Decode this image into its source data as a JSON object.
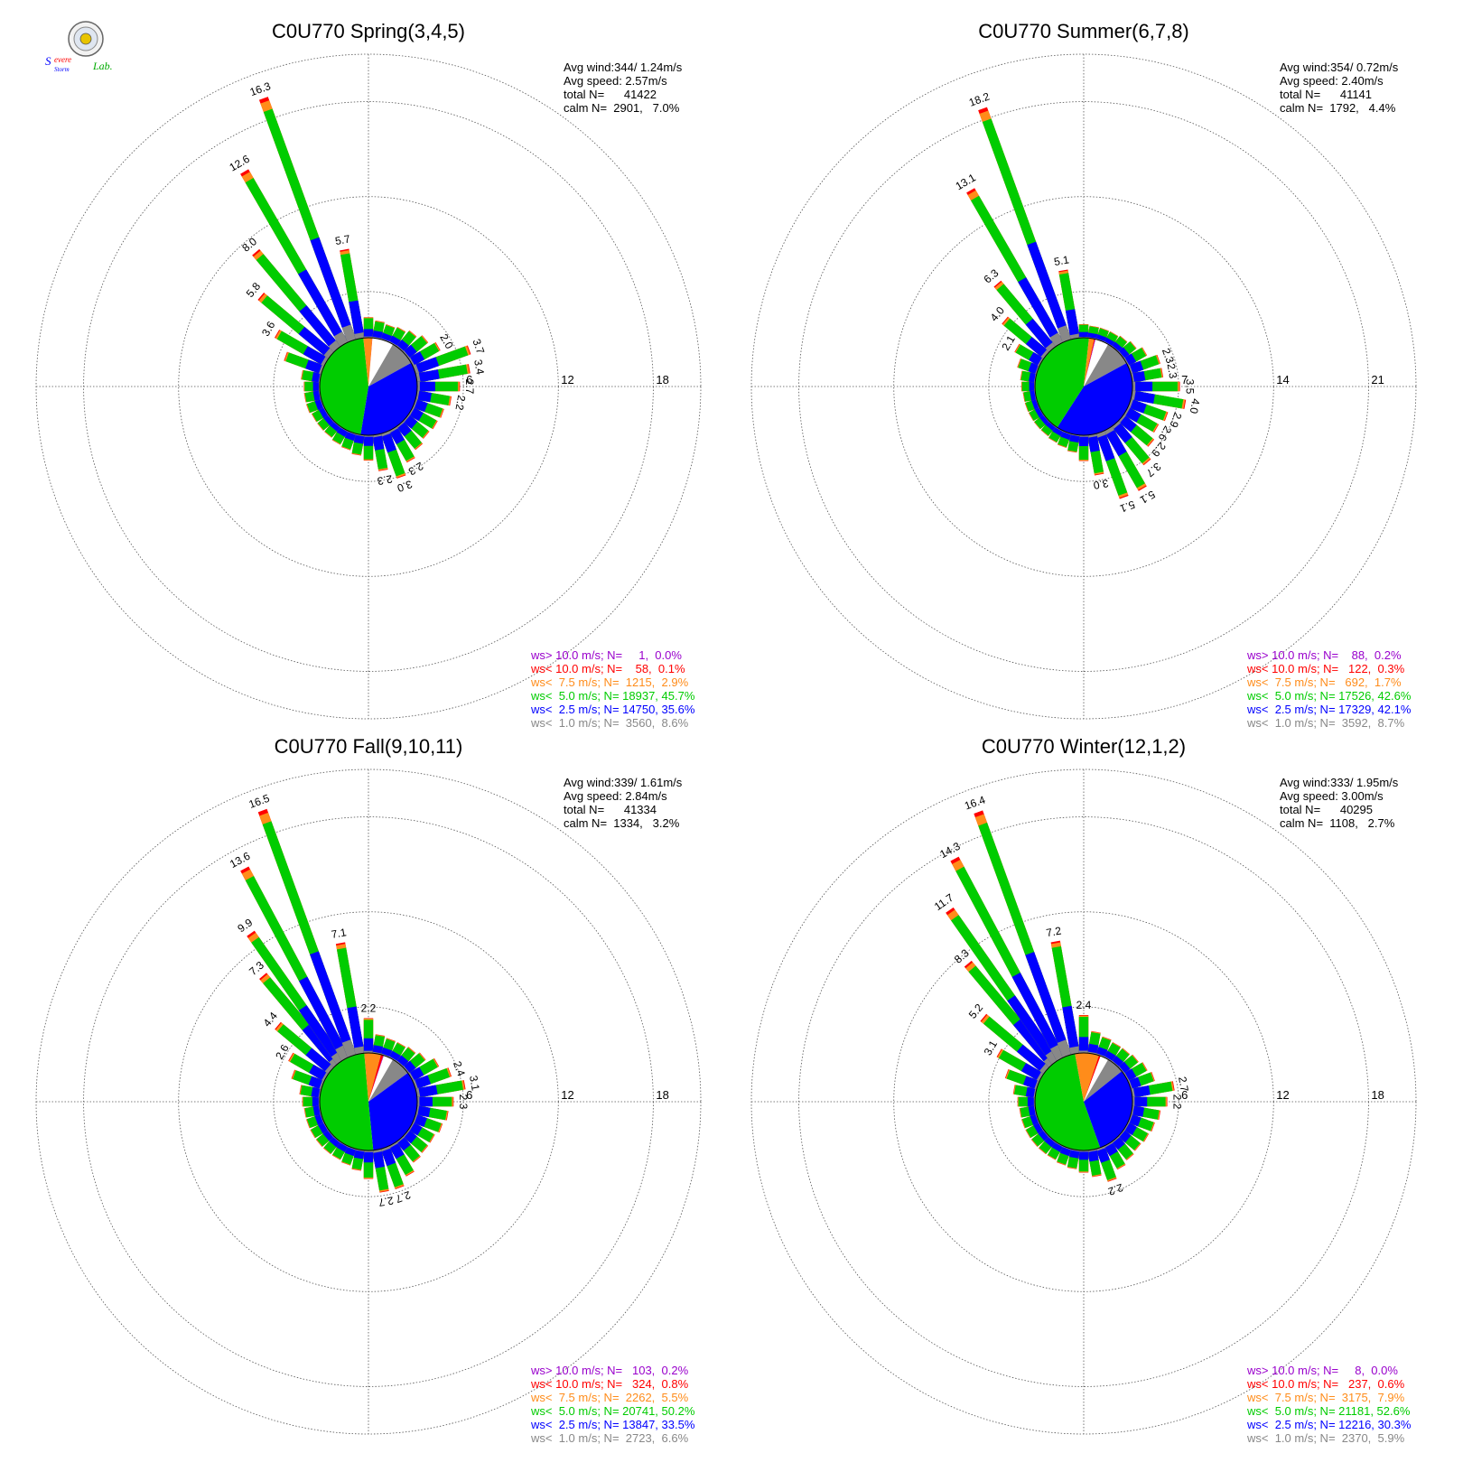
{
  "logo": {
    "text_a": "Severe",
    "text_b": "Storm",
    "text_c": "Lab."
  },
  "colors": {
    "gt10": "#9900cc",
    "lt10": "#ff0000",
    "lt7_5": "#ff8c1a",
    "lt5": "#00cc00",
    "lt2_5": "#0000ff",
    "lt1": "#888888",
    "calm": "#ffffff",
    "grid": "#555555",
    "text": "#000000"
  },
  "legend_classes": [
    "gt10",
    "lt10",
    "lt7_5",
    "lt5",
    "lt2_5",
    "lt1"
  ],
  "chart_data": [
    {
      "type": "wind-rose",
      "title": "C0U770 Spring(3,4,5)",
      "rings": [
        6,
        12,
        18
      ],
      "rmax": 21,
      "stats": [
        "Avg wind:344/ 1.24m/s",
        "Avg speed: 2.57m/s",
        "total N=      41422",
        "calm N=  2901,   7.0%"
      ],
      "legend": [
        "ws> 10.0 m/s; N=     1,  0.0%",
        "ws< 10.0 m/s; N=    58,  0.1%",
        "ws<  7.5 m/s; N=  1215,  2.9%",
        "ws<  5.0 m/s; N= 18937, 45.7%",
        "ws<  2.5 m/s; N= 14750, 35.6%",
        "ws<  1.0 m/s; N=  3560,  8.6%"
      ],
      "pie": [
        8.6,
        35.6,
        45.7,
        2.9,
        0.1,
        0.0,
        7.0
      ],
      "petals": [
        {
          "dir": 270,
          "total": 1.0
        },
        {
          "dir": 280,
          "total": 1.2
        },
        {
          "dir": 290,
          "total": 2.5
        },
        {
          "dir": 300,
          "total": 3.6,
          "label": "3.6"
        },
        {
          "dir": 310,
          "total": 5.8,
          "label": "5.8"
        },
        {
          "dir": 320,
          "total": 8.0,
          "label": "8.0"
        },
        {
          "dir": 330,
          "total": 12.6,
          "label": "12.6"
        },
        {
          "dir": 340,
          "total": 16.3,
          "label": "16.3"
        },
        {
          "dir": 350,
          "total": 5.7,
          "label": "5.7"
        },
        {
          "dir": 0,
          "total": 1.3
        },
        {
          "dir": 10,
          "total": 1.1
        },
        {
          "dir": 20,
          "total": 1.0
        },
        {
          "dir": 30,
          "total": 1.1
        },
        {
          "dir": 40,
          "total": 1.3
        },
        {
          "dir": 50,
          "total": 1.6
        },
        {
          "dir": 60,
          "total": 2.0,
          "label": "2.0"
        },
        {
          "dir": 70,
          "total": 3.7,
          "label": "3.7"
        },
        {
          "dir": 80,
          "total": 3.4,
          "label": "3.4"
        },
        {
          "dir": 90,
          "total": 2.7,
          "label": "2.7"
        },
        {
          "dir": 100,
          "total": 2.2,
          "label": "2.2"
        },
        {
          "dir": 110,
          "total": 1.9
        },
        {
          "dir": 120,
          "total": 1.8
        },
        {
          "dir": 130,
          "total": 1.7
        },
        {
          "dir": 140,
          "total": 1.9
        },
        {
          "dir": 150,
          "total": 2.3,
          "label": "2.3"
        },
        {
          "dir": 160,
          "total": 3.0,
          "label": "3.0"
        },
        {
          "dir": 170,
          "total": 2.3,
          "label": "2.3"
        },
        {
          "dir": 180,
          "total": 1.6
        },
        {
          "dir": 190,
          "total": 1.3
        },
        {
          "dir": 200,
          "total": 1.1
        },
        {
          "dir": 210,
          "total": 1.0
        },
        {
          "dir": 220,
          "total": 0.9
        },
        {
          "dir": 230,
          "total": 0.9
        },
        {
          "dir": 240,
          "total": 0.9
        },
        {
          "dir": 250,
          "total": 1.0
        },
        {
          "dir": 260,
          "total": 1.0
        }
      ]
    },
    {
      "type": "wind-rose",
      "title": "C0U770 Summer(6,7,8)",
      "rings": [
        7,
        14,
        21
      ],
      "rmax": 24.5,
      "stats": [
        "Avg wind:354/ 0.72m/s",
        "Avg speed: 2.40m/s",
        "total N=      41141",
        "calm N=  1792,   4.4%"
      ],
      "legend": [
        "ws> 10.0 m/s; N=    88,  0.2%",
        "ws< 10.0 m/s; N=   122,  0.3%",
        "ws<  7.5 m/s; N=   692,  1.7%",
        "ws<  5.0 m/s; N= 17526, 42.6%",
        "ws<  2.5 m/s; N= 17329, 42.1%",
        "ws<  1.0 m/s; N=  3592,  8.7%"
      ],
      "pie": [
        8.7,
        42.1,
        42.6,
        1.7,
        0.3,
        0.2,
        4.4
      ],
      "petals": [
        {
          "dir": 270,
          "total": 1.0
        },
        {
          "dir": 280,
          "total": 1.1
        },
        {
          "dir": 290,
          "total": 1.5
        },
        {
          "dir": 300,
          "total": 2.1,
          "label": "2.1"
        },
        {
          "dir": 310,
          "total": 4.0,
          "label": "4.0"
        },
        {
          "dir": 320,
          "total": 6.3,
          "label": "6.3"
        },
        {
          "dir": 330,
          "total": 13.1,
          "label": "13.1"
        },
        {
          "dir": 340,
          "total": 18.2,
          "label": "18.2"
        },
        {
          "dir": 350,
          "total": 5.1,
          "label": "5.1"
        },
        {
          "dir": 0,
          "total": 1.0
        },
        {
          "dir": 10,
          "total": 0.9
        },
        {
          "dir": 20,
          "total": 0.9
        },
        {
          "dir": 30,
          "total": 0.9
        },
        {
          "dir": 40,
          "total": 1.0
        },
        {
          "dir": 50,
          "total": 1.2
        },
        {
          "dir": 60,
          "total": 1.6
        },
        {
          "dir": 70,
          "total": 2.3,
          "label": "2.3"
        },
        {
          "dir": 80,
          "total": 2.3,
          "label": "2.3"
        },
        {
          "dir": 90,
          "total": 3.5,
          "label": "3.5"
        },
        {
          "dir": 100,
          "total": 4.0,
          "label": "4.0"
        },
        {
          "dir": 110,
          "total": 2.9,
          "label": "2.9"
        },
        {
          "dir": 120,
          "total": 2.6,
          "label": "2.6"
        },
        {
          "dir": 130,
          "total": 2.9,
          "label": "2.9"
        },
        {
          "dir": 140,
          "total": 3.7,
          "label": "3.7"
        },
        {
          "dir": 150,
          "total": 5.1,
          "label": "5.1"
        },
        {
          "dir": 160,
          "total": 5.1,
          "label": "5.1"
        },
        {
          "dir": 170,
          "total": 3.0,
          "label": "3.0"
        },
        {
          "dir": 180,
          "total": 1.9
        },
        {
          "dir": 190,
          "total": 1.3
        },
        {
          "dir": 200,
          "total": 1.1
        },
        {
          "dir": 210,
          "total": 1.0
        },
        {
          "dir": 220,
          "total": 0.9
        },
        {
          "dir": 230,
          "total": 0.9
        },
        {
          "dir": 240,
          "total": 0.9
        },
        {
          "dir": 250,
          "total": 0.9
        },
        {
          "dir": 260,
          "total": 0.9
        }
      ]
    },
    {
      "type": "wind-rose",
      "title": "C0U770 Fall(9,10,11)",
      "rings": [
        6,
        12,
        18
      ],
      "rmax": 21,
      "stats": [
        "Avg wind:339/ 1.61m/s",
        "Avg speed: 2.84m/s",
        "total N=      41334",
        "calm N=  1334,   3.2%"
      ],
      "legend": [
        "ws> 10.0 m/s; N=   103,  0.2%",
        "ws< 10.0 m/s; N=   324,  0.8%",
        "ws<  7.5 m/s; N=  2262,  5.5%",
        "ws<  5.0 m/s; N= 20741, 50.2%",
        "ws<  2.5 m/s; N= 13847, 33.5%",
        "ws<  1.0 m/s; N=  2723,  6.6%"
      ],
      "pie": [
        6.6,
        33.5,
        50.2,
        5.5,
        0.8,
        0.2,
        3.2
      ],
      "petals": [
        {
          "dir": 270,
          "total": 1.1
        },
        {
          "dir": 280,
          "total": 1.3
        },
        {
          "dir": 290,
          "total": 2.0
        },
        {
          "dir": 300,
          "total": 2.6,
          "label": "2.6"
        },
        {
          "dir": 310,
          "total": 4.4,
          "label": "4.4"
        },
        {
          "dir": 320,
          "total": 7.3,
          "label": "7.3"
        },
        {
          "dir": 325,
          "total": 9.9,
          "label": "9.9"
        },
        {
          "dir": 332,
          "total": 13.6,
          "label": "13.6"
        },
        {
          "dir": 340,
          "total": 16.5,
          "label": "16.5"
        },
        {
          "dir": 350,
          "total": 7.1,
          "label": "7.1"
        },
        {
          "dir": 0,
          "total": 2.2,
          "label": "2.2"
        },
        {
          "dir": 10,
          "total": 1.2
        },
        {
          "dir": 20,
          "total": 1.1
        },
        {
          "dir": 30,
          "total": 1.1
        },
        {
          "dir": 40,
          "total": 1.2
        },
        {
          "dir": 50,
          "total": 1.4
        },
        {
          "dir": 60,
          "total": 1.9
        },
        {
          "dir": 70,
          "total": 2.4,
          "label": "2.4"
        },
        {
          "dir": 80,
          "total": 3.1,
          "label": "3.1"
        },
        {
          "dir": 90,
          "total": 2.3,
          "label": "2.3"
        },
        {
          "dir": 100,
          "total": 2.0
        },
        {
          "dir": 110,
          "total": 1.8
        },
        {
          "dir": 120,
          "total": 1.6
        },
        {
          "dir": 130,
          "total": 1.6
        },
        {
          "dir": 140,
          "total": 1.7
        },
        {
          "dir": 150,
          "total": 2.2
        },
        {
          "dir": 160,
          "total": 2.7,
          "label": "2.7"
        },
        {
          "dir": 170,
          "total": 2.7,
          "label": "2.7"
        },
        {
          "dir": 180,
          "total": 1.8
        },
        {
          "dir": 190,
          "total": 1.3
        },
        {
          "dir": 200,
          "total": 1.1
        },
        {
          "dir": 210,
          "total": 1.0
        },
        {
          "dir": 220,
          "total": 1.0
        },
        {
          "dir": 230,
          "total": 1.0
        },
        {
          "dir": 240,
          "total": 1.0
        },
        {
          "dir": 250,
          "total": 1.0
        },
        {
          "dir": 260,
          "total": 1.0
        }
      ]
    },
    {
      "type": "wind-rose",
      "title": "C0U770 Winter(12,1,2)",
      "rings": [
        6,
        12,
        18
      ],
      "rmax": 21,
      "stats": [
        "Avg wind:333/ 1.95m/s",
        "Avg speed: 3.00m/s",
        "total N=      40295",
        "calm N=  1108,   2.7%"
      ],
      "legend": [
        "ws> 10.0 m/s; N=     8,  0.0%",
        "ws< 10.0 m/s; N=   237,  0.6%",
        "ws<  7.5 m/s; N=  3175,  7.9%",
        "ws<  5.0 m/s; N= 21181, 52.6%",
        "ws<  2.5 m/s; N= 12216, 30.3%",
        "ws<  1.0 m/s; N=  2370,  5.9%"
      ],
      "pie": [
        5.9,
        30.3,
        52.6,
        7.9,
        0.6,
        0.0,
        2.7
      ],
      "petals": [
        {
          "dir": 270,
          "total": 1.1
        },
        {
          "dir": 280,
          "total": 1.4
        },
        {
          "dir": 290,
          "total": 2.1
        },
        {
          "dir": 300,
          "total": 3.1,
          "label": "3.1"
        },
        {
          "dir": 310,
          "total": 5.2,
          "label": "5.2"
        },
        {
          "dir": 320,
          "total": 8.3,
          "label": "8.3"
        },
        {
          "dir": 325,
          "total": 11.7,
          "label": "11.7"
        },
        {
          "dir": 332,
          "total": 14.3,
          "label": "14.3"
        },
        {
          "dir": 340,
          "total": 16.4,
          "label": "16.4"
        },
        {
          "dir": 350,
          "total": 7.2,
          "label": "7.2"
        },
        {
          "dir": 0,
          "total": 2.4,
          "label": "2.4"
        },
        {
          "dir": 10,
          "total": 1.4
        },
        {
          "dir": 20,
          "total": 1.2
        },
        {
          "dir": 30,
          "total": 1.1
        },
        {
          "dir": 40,
          "total": 1.1
        },
        {
          "dir": 50,
          "total": 1.2
        },
        {
          "dir": 60,
          "total": 1.4
        },
        {
          "dir": 70,
          "total": 1.6
        },
        {
          "dir": 80,
          "total": 2.7,
          "label": "2.7"
        },
        {
          "dir": 90,
          "total": 2.2,
          "label": "2.2"
        },
        {
          "dir": 100,
          "total": 1.8
        },
        {
          "dir": 110,
          "total": 1.6
        },
        {
          "dir": 120,
          "total": 1.5
        },
        {
          "dir": 130,
          "total": 1.4
        },
        {
          "dir": 140,
          "total": 1.5
        },
        {
          "dir": 150,
          "total": 1.7
        },
        {
          "dir": 160,
          "total": 2.2,
          "label": "2.2"
        },
        {
          "dir": 170,
          "total": 1.7
        },
        {
          "dir": 180,
          "total": 1.4
        },
        {
          "dir": 190,
          "total": 1.2
        },
        {
          "dir": 200,
          "total": 1.1
        },
        {
          "dir": 210,
          "total": 1.0
        },
        {
          "dir": 220,
          "total": 1.0
        },
        {
          "dir": 230,
          "total": 1.0
        },
        {
          "dir": 240,
          "total": 1.0
        },
        {
          "dir": 250,
          "total": 1.0
        },
        {
          "dir": 260,
          "total": 1.0
        }
      ]
    }
  ]
}
